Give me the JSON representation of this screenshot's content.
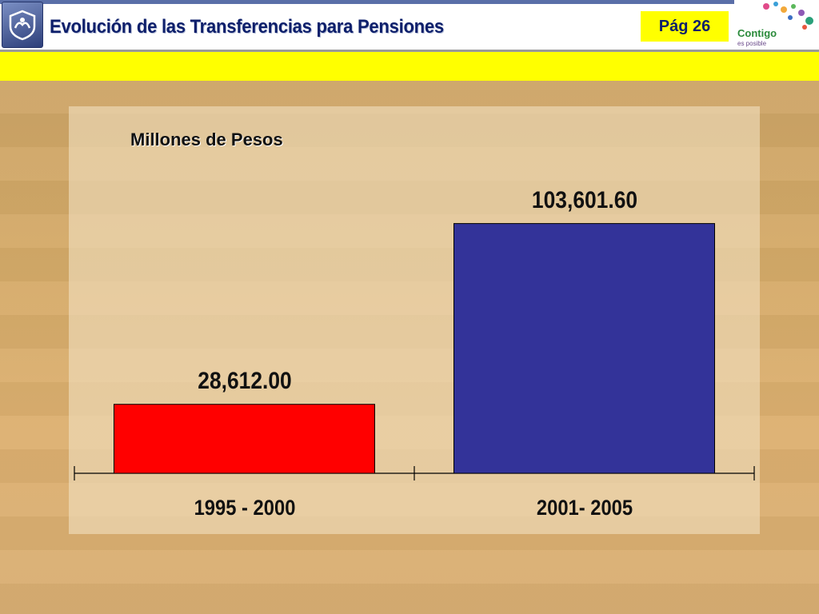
{
  "header": {
    "title": "Evolución de las Transferencias para Pensiones",
    "page_label": "Pág 26",
    "brand_text": "Contigo",
    "brand_subtext": "es posible"
  },
  "colors": {
    "title": "#0d1f6b",
    "band": "#ffff00",
    "bar_1": "#ff0000",
    "bar_2": "#333399"
  },
  "icons": {
    "logo": "hands-shield-logo",
    "brand": "contigo-es-posible-logo"
  },
  "chart_data": {
    "type": "bar",
    "subtitle": "Millones de Pesos",
    "categories": [
      "1995 - 2000",
      "2001- 2005"
    ],
    "values": [
      28612.0,
      103601.6
    ],
    "value_labels": [
      "28,612.00",
      "103,601.60"
    ],
    "bar_colors": [
      "#ff0000",
      "#333399"
    ],
    "ylim": [
      0,
      130000
    ],
    "grid": false,
    "legend": "none"
  }
}
